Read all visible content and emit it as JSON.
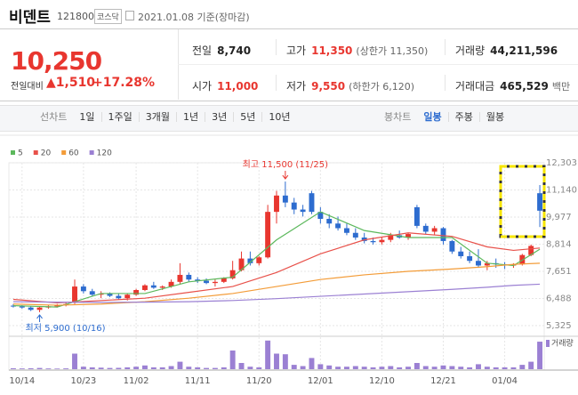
{
  "header": {
    "name": "비덴트",
    "code": "121800",
    "market": "코스닥",
    "date": "2021.01.08 기준(장마감)"
  },
  "quote": {
    "price": "10,250",
    "change_label": "전일대비",
    "change": "▲1,510",
    "change_pct": "+17.28%",
    "color": "#e8362f"
  },
  "table": {
    "rows": [
      [
        {
          "label": "전일",
          "value": "8,740",
          "color": "#222"
        },
        {
          "label": "고가",
          "value": "11,350",
          "note": "(상한가 11,350)",
          "color": "#e8362f"
        },
        {
          "label": "거래량",
          "value": "44,211,596",
          "color": "#222"
        }
      ],
      [
        {
          "label": "시가",
          "value": "11,000",
          "color": "#e8362f"
        },
        {
          "label": "저가",
          "value": "9,550",
          "note": "(하한가 6,120)",
          "color": "#e8362f"
        },
        {
          "label": "거래대금",
          "value": "465,529",
          "note": "백만",
          "color": "#222"
        }
      ]
    ]
  },
  "tabs": {
    "line_label": "선차트",
    "line": [
      "1일",
      "1주일",
      "3개월",
      "1년",
      "3년",
      "5년",
      "10년"
    ],
    "candle_label": "봉차트",
    "candle": [
      "일봉",
      "주봉",
      "월봉"
    ],
    "active": "일봉"
  },
  "chart_data": {
    "type": "candlestick",
    "up_color": "#e8362f",
    "down_color": "#2d6ccf",
    "volume_color": "#9b80d3",
    "volume_label": "거래량",
    "grid": true,
    "ylim": [
      5325,
      12303
    ],
    "yticks": [
      {
        "value": 5325,
        "label": "5,325"
      },
      {
        "value": 6488,
        "label": "6,488"
      },
      {
        "value": 7651,
        "label": "7,651"
      },
      {
        "value": 8814,
        "label": "8,814"
      },
      {
        "value": 9977,
        "label": "9,977"
      },
      {
        "value": 11140,
        "label": "11,140"
      },
      {
        "value": 12303,
        "label": "12,303"
      }
    ],
    "volume_lim": [
      0,
      50000000
    ],
    "xticks": [
      "10/14",
      "10/23",
      "11/02",
      "11/11",
      "11/20",
      "12/01",
      "12/10",
      "12/21",
      "01/04"
    ],
    "candles": [
      {
        "date": "10/13",
        "open": 6180,
        "high": 6250,
        "low": 6100,
        "close": 6150,
        "volume": 1500000
      },
      {
        "date": "10/14",
        "open": 6150,
        "high": 6200,
        "low": 6050,
        "close": 6100,
        "volume": 1200000
      },
      {
        "date": "10/15",
        "open": 6100,
        "high": 6150,
        "low": 5950,
        "close": 6000,
        "volume": 1500000
      },
      {
        "date": "10/16",
        "open": 6000,
        "high": 6150,
        "low": 5900,
        "close": 6100,
        "volume": 2000000
      },
      {
        "date": "10/19",
        "open": 6100,
        "high": 6200,
        "low": 6050,
        "close": 6150,
        "volume": 1200000
      },
      {
        "date": "10/20",
        "open": 6150,
        "high": 6250,
        "low": 6100,
        "close": 6200,
        "volume": 1000000
      },
      {
        "date": "10/21",
        "open": 6200,
        "high": 6300,
        "low": 6150,
        "close": 6250,
        "volume": 1300000
      },
      {
        "date": "10/22",
        "open": 6300,
        "high": 7300,
        "low": 6250,
        "close": 7000,
        "volume": 25000000
      },
      {
        "date": "10/23",
        "open": 7000,
        "high": 7100,
        "low": 6700,
        "close": 6800,
        "volume": 4000000
      },
      {
        "date": "10/26",
        "open": 6800,
        "high": 6900,
        "low": 6600,
        "close": 6650,
        "volume": 3000000
      },
      {
        "date": "10/27",
        "open": 6650,
        "high": 6800,
        "low": 6500,
        "close": 6700,
        "volume": 2500000
      },
      {
        "date": "10/28",
        "open": 6700,
        "high": 6750,
        "low": 6550,
        "close": 6600,
        "volume": 2000000
      },
      {
        "date": "10/29",
        "open": 6600,
        "high": 6700,
        "low": 6450,
        "close": 6500,
        "volume": 2200000
      },
      {
        "date": "10/30",
        "open": 6500,
        "high": 6700,
        "low": 6400,
        "close": 6650,
        "volume": 3000000
      },
      {
        "date": "11/02",
        "open": 6650,
        "high": 6900,
        "low": 6600,
        "close": 6850,
        "volume": 4000000
      },
      {
        "date": "11/03",
        "open": 6850,
        "high": 7100,
        "low": 6800,
        "close": 7050,
        "volume": 6000000
      },
      {
        "date": "11/04",
        "open": 7050,
        "high": 7200,
        "low": 6900,
        "close": 6950,
        "volume": 3000000
      },
      {
        "date": "11/05",
        "open": 6950,
        "high": 7050,
        "low": 6850,
        "close": 7000,
        "volume": 3000000
      },
      {
        "date": "11/06",
        "open": 7000,
        "high": 7300,
        "low": 6950,
        "close": 7200,
        "volume": 5000000
      },
      {
        "date": "11/09",
        "open": 7200,
        "high": 8000,
        "low": 7100,
        "close": 7500,
        "volume": 12000000
      },
      {
        "date": "11/10",
        "open": 7500,
        "high": 7600,
        "low": 7200,
        "close": 7300,
        "volume": 4000000
      },
      {
        "date": "11/11",
        "open": 7300,
        "high": 7400,
        "low": 7150,
        "close": 7250,
        "volume": 3000000
      },
      {
        "date": "11/12",
        "open": 7250,
        "high": 7350,
        "low": 7100,
        "close": 7150,
        "volume": 2000000
      },
      {
        "date": "11/13",
        "open": 7150,
        "high": 7300,
        "low": 7000,
        "close": 7200,
        "volume": 2000000
      },
      {
        "date": "11/16",
        "open": 7200,
        "high": 7400,
        "low": 7150,
        "close": 7350,
        "volume": 3000000
      },
      {
        "date": "11/17",
        "open": 7350,
        "high": 8100,
        "low": 7300,
        "close": 7700,
        "volume": 30000000
      },
      {
        "date": "11/18",
        "open": 7700,
        "high": 8500,
        "low": 7650,
        "close": 8200,
        "volume": 10000000
      },
      {
        "date": "11/19",
        "open": 8200,
        "high": 8500,
        "low": 7900,
        "close": 8000,
        "volume": 4000000
      },
      {
        "date": "11/20",
        "open": 8000,
        "high": 8300,
        "low": 7900,
        "close": 8250,
        "volume": 3000000
      },
      {
        "date": "11/23",
        "open": 8250,
        "high": 10500,
        "low": 8200,
        "close": 10200,
        "volume": 46000000
      },
      {
        "date": "11/24",
        "open": 10200,
        "high": 11100,
        "low": 9700,
        "close": 10900,
        "volume": 25000000
      },
      {
        "date": "11/25",
        "open": 10900,
        "high": 11500,
        "low": 10400,
        "close": 10600,
        "volume": 24000000
      },
      {
        "date": "11/26",
        "open": 10600,
        "high": 10800,
        "low": 10100,
        "close": 10300,
        "volume": 7000000
      },
      {
        "date": "11/27",
        "open": 10300,
        "high": 10500,
        "low": 10000,
        "close": 10200,
        "volume": 5000000
      },
      {
        "date": "11/30",
        "open": 11000,
        "high": 11100,
        "low": 10100,
        "close": 10200,
        "volume": 18000000
      },
      {
        "date": "12/01",
        "open": 10200,
        "high": 10400,
        "low": 9700,
        "close": 9900,
        "volume": 8000000
      },
      {
        "date": "12/02",
        "open": 9900,
        "high": 10100,
        "low": 9500,
        "close": 9700,
        "volume": 6000000
      },
      {
        "date": "12/03",
        "open": 9700,
        "high": 10000,
        "low": 9400,
        "close": 9500,
        "volume": 4000000
      },
      {
        "date": "12/04",
        "open": 9500,
        "high": 9700,
        "low": 9200,
        "close": 9300,
        "volume": 4000000
      },
      {
        "date": "12/07",
        "open": 9300,
        "high": 9500,
        "low": 9000,
        "close": 9100,
        "volume": 5000000
      },
      {
        "date": "12/08",
        "open": 9100,
        "high": 9300,
        "low": 8850,
        "close": 8950,
        "volume": 4000000
      },
      {
        "date": "12/09",
        "open": 8950,
        "high": 9100,
        "low": 8800,
        "close": 8900,
        "volume": 3000000
      },
      {
        "date": "12/10",
        "open": 8900,
        "high": 9100,
        "low": 8800,
        "close": 9000,
        "volume": 4000000
      },
      {
        "date": "12/11",
        "open": 9000,
        "high": 9300,
        "low": 8900,
        "close": 9200,
        "volume": 5000000
      },
      {
        "date": "12/14",
        "open": 9200,
        "high": 9400,
        "low": 9050,
        "close": 9100,
        "volume": 3000000
      },
      {
        "date": "12/15",
        "open": 9100,
        "high": 9300,
        "low": 9000,
        "close": 9250,
        "volume": 4000000
      },
      {
        "date": "12/16",
        "open": 10400,
        "high": 10500,
        "low": 9500,
        "close": 9600,
        "volume": 10000000
      },
      {
        "date": "12/17",
        "open": 9600,
        "high": 9700,
        "low": 9250,
        "close": 9350,
        "volume": 5000000
      },
      {
        "date": "12/18",
        "open": 9350,
        "high": 9600,
        "low": 9200,
        "close": 9500,
        "volume": 4000000
      },
      {
        "date": "12/21",
        "open": 9500,
        "high": 9550,
        "low": 8800,
        "close": 8950,
        "volume": 6000000
      },
      {
        "date": "12/22",
        "open": 8950,
        "high": 9000,
        "low": 8400,
        "close": 8500,
        "volume": 5000000
      },
      {
        "date": "12/23",
        "open": 8500,
        "high": 8700,
        "low": 8200,
        "close": 8300,
        "volume": 4000000
      },
      {
        "date": "12/24",
        "open": 8300,
        "high": 8500,
        "low": 8000,
        "close": 8100,
        "volume": 3000000
      },
      {
        "date": "12/28",
        "open": 8100,
        "high": 8600,
        "low": 7800,
        "close": 7900,
        "volume": 8000000
      },
      {
        "date": "12/29",
        "open": 7900,
        "high": 8100,
        "low": 7700,
        "close": 8000,
        "volume": 4000000
      },
      {
        "date": "12/30",
        "open": 8000,
        "high": 8200,
        "low": 7800,
        "close": 7950,
        "volume": 3000000
      },
      {
        "date": "01/04",
        "open": 7950,
        "high": 8050,
        "low": 7750,
        "close": 7900,
        "volume": 3000000
      },
      {
        "date": "01/05",
        "open": 7900,
        "high": 8000,
        "low": 7800,
        "close": 7950,
        "volume": 3000000
      },
      {
        "date": "01/06",
        "open": 7950,
        "high": 8400,
        "low": 7900,
        "close": 8350,
        "volume": 7000000
      },
      {
        "date": "01/07",
        "open": 8350,
        "high": 8800,
        "low": 8300,
        "close": 8740,
        "volume": 12000000
      },
      {
        "date": "01/08",
        "open": 11000,
        "high": 11350,
        "low": 9550,
        "close": 10250,
        "volume": 44211596
      }
    ],
    "moving_averages": [
      {
        "name": "5",
        "color": "#5cb85c",
        "x": [
          "10/13",
          "10/20",
          "10/27",
          "11/03",
          "11/10",
          "11/17",
          "11/24",
          "12/01",
          "12/08",
          "12/15",
          "12/22",
          "12/29",
          "01/05",
          "01/08"
        ],
        "values": [
          6180,
          6120,
          6700,
          6700,
          7200,
          7400,
          9000,
          10200,
          9400,
          9100,
          9100,
          8000,
          7900,
          8600
        ]
      },
      {
        "name": "20",
        "color": "#e8514a",
        "x": [
          "10/13",
          "10/20",
          "10/27",
          "11/03",
          "11/10",
          "11/17",
          "11/24",
          "12/01",
          "12/08",
          "12/15",
          "12/22",
          "12/29",
          "01/05",
          "01/08"
        ],
        "values": [
          6450,
          6300,
          6400,
          6500,
          6750,
          7000,
          7600,
          8400,
          9000,
          9300,
          9150,
          8700,
          8550,
          8650
        ]
      },
      {
        "name": "60",
        "color": "#f39c38",
        "x": [
          "10/13",
          "10/20",
          "10/27",
          "11/03",
          "11/10",
          "11/17",
          "11/24",
          "12/01",
          "12/08",
          "12/15",
          "12/22",
          "12/29",
          "01/05",
          "01/08"
        ],
        "values": [
          6250,
          6200,
          6250,
          6350,
          6500,
          6700,
          7000,
          7300,
          7500,
          7650,
          7750,
          7850,
          7950,
          8000
        ]
      },
      {
        "name": "120",
        "color": "#9b80d3",
        "x": [
          "10/13",
          "10/20",
          "10/27",
          "11/03",
          "11/10",
          "11/17",
          "11/24",
          "12/01",
          "12/08",
          "12/15",
          "12/22",
          "12/29",
          "01/05",
          "01/08"
        ],
        "values": [
          6350,
          6330,
          6320,
          6330,
          6350,
          6400,
          6480,
          6580,
          6680,
          6780,
          6880,
          6970,
          7050,
          7100
        ]
      }
    ],
    "annotations": [
      {
        "text": "최고 11,500 (11/25)",
        "date": "11/25",
        "price": 11500,
        "color": "#e8362f"
      },
      {
        "text": "최저 5,900 (10/16)",
        "date": "10/16",
        "price": 5900,
        "color": "#2d6ccf"
      }
    ]
  }
}
